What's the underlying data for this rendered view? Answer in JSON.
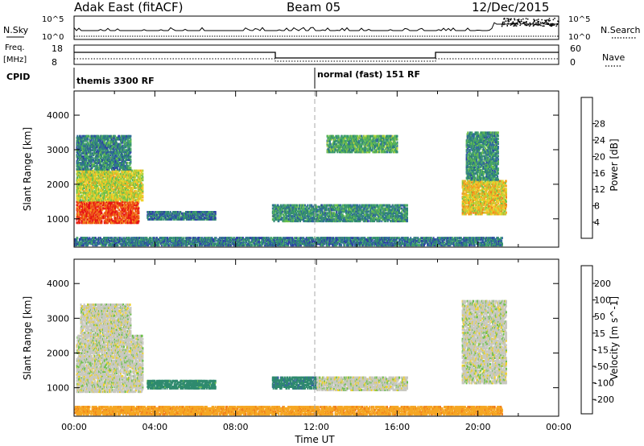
{
  "header": {
    "title": "Adak East (fitACF)",
    "beam": "Beam 05",
    "date": "12/Dec/2015"
  },
  "status_panels": {
    "nsky_label": "N.Sky",
    "nsearch_label": "N.Search",
    "nsky_ticks": [
      "10^5",
      "10^0"
    ],
    "nsearch_ticks": [
      "10^5",
      "10^0"
    ],
    "freq_label": "Freq.",
    "freq_unit": "[MHz]",
    "freq_ticks": [
      "18",
      "8"
    ],
    "nave_label": "Nave",
    "nave_ticks": [
      "60",
      "0"
    ],
    "cpid_label": "CPID",
    "cpid_segments": [
      {
        "start_hour": 0,
        "label": "themis 3300 RF"
      },
      {
        "start_hour": 12,
        "label": "normal (fast) 151 RF"
      }
    ]
  },
  "colors": {
    "power_scale": [
      "#1a2ee8",
      "#2d3fa6",
      "#2f6b9a",
      "#2f8a6e",
      "#48a86a",
      "#6cc04a",
      "#b7d23a",
      "#f0d22a",
      "#f5a623",
      "#f07a1a",
      "#ee4a17",
      "#e61414"
    ],
    "velocity_scale": [
      "#2020c8",
      "#3a5fa8",
      "#2f8a6e",
      "#6cc04a",
      "#c8c8c0",
      "#f0d22a",
      "#f5a623",
      "#f07a1a",
      "#e61414"
    ],
    "dashed_line": "#aaaaaa"
  },
  "chart_data": [
    {
      "type": "heatmap",
      "name": "power",
      "xlabel": "",
      "ylabel": "Slant Range [km]",
      "xlim": [
        0,
        24
      ],
      "ylim": [
        180,
        4700
      ],
      "yticks": [
        "1000",
        "2000",
        "3000",
        "4000"
      ],
      "colorbar_label": "Power [dB]",
      "colorbar_ticks": [
        "4",
        "8",
        "12",
        "16",
        "20",
        "24",
        "28"
      ],
      "colorbar_range": [
        0,
        32
      ],
      "regions": [
        {
          "t0": 0.1,
          "t1": 3.2,
          "r0": 850,
          "r1": 1500,
          "p": 28
        },
        {
          "t0": 0.1,
          "t1": 3.4,
          "r0": 1500,
          "r1": 2400,
          "p": 18
        },
        {
          "t0": 0.1,
          "t1": 2.8,
          "r0": 2400,
          "r1": 3400,
          "p": 9
        },
        {
          "t0": 3.6,
          "t1": 7.0,
          "r0": 950,
          "r1": 1200,
          "p": 8
        },
        {
          "t0": 9.8,
          "t1": 16.5,
          "r0": 900,
          "r1": 1400,
          "p": 10
        },
        {
          "t0": 12.5,
          "t1": 16.0,
          "r0": 2900,
          "r1": 3400,
          "p": 12
        },
        {
          "t0": 19.2,
          "t1": 21.4,
          "r0": 1100,
          "r1": 2100,
          "p": 20
        },
        {
          "t0": 19.4,
          "t1": 21.0,
          "r0": 2100,
          "r1": 3500,
          "p": 10
        },
        {
          "t0": 0.0,
          "t1": 21.2,
          "r0": 200,
          "r1": 450,
          "p": 8
        }
      ]
    },
    {
      "type": "heatmap",
      "name": "velocity",
      "xlabel": "Time UT",
      "ylabel": "Slant Range [km]",
      "xlim": [
        0,
        24
      ],
      "ylim": [
        180,
        4700
      ],
      "xticks": [
        "00:00",
        "04:00",
        "08:00",
        "12:00",
        "16:00",
        "20:00",
        "00:00"
      ],
      "yticks": [
        "1000",
        "2000",
        "3000",
        "4000"
      ],
      "colorbar_label": "Velocity [m s^-1]",
      "colorbar_ticks": [
        "200",
        "100",
        "50",
        "15",
        "-15",
        "-50",
        "-100",
        "-200"
      ],
      "regions": [
        {
          "t0": 0.1,
          "t1": 3.4,
          "r0": 850,
          "r1": 2500,
          "v": 0
        },
        {
          "t0": 0.3,
          "t1": 2.8,
          "r0": 2500,
          "r1": 3400,
          "v": 0
        },
        {
          "t0": 3.6,
          "t1": 7.0,
          "r0": 950,
          "r1": 1200,
          "v": 50
        },
        {
          "t0": 9.8,
          "t1": 12.0,
          "r0": 950,
          "r1": 1300,
          "v": 60
        },
        {
          "t0": 12.0,
          "t1": 16.5,
          "r0": 900,
          "r1": 1300,
          "v": 0
        },
        {
          "t0": 19.2,
          "t1": 21.4,
          "r0": 1100,
          "r1": 3500,
          "v": 0
        },
        {
          "t0": 0.0,
          "t1": 21.2,
          "r0": 200,
          "r1": 450,
          "v": -60
        }
      ]
    }
  ]
}
